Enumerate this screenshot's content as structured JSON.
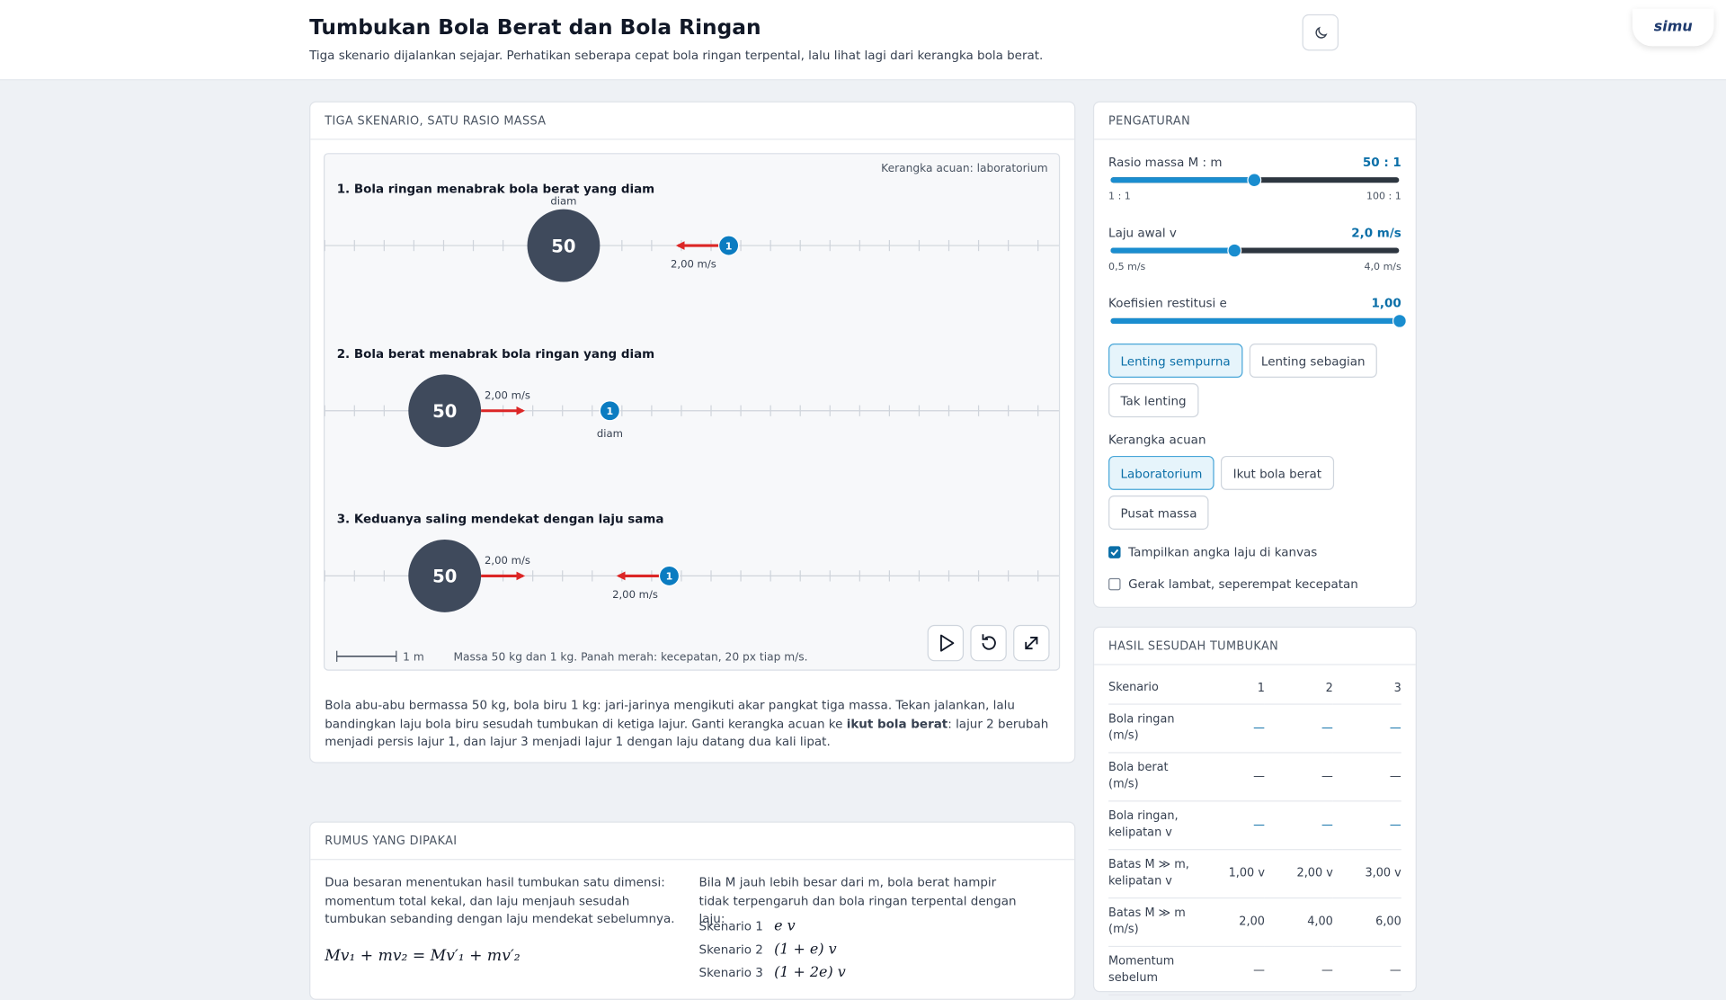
{
  "header": {
    "title": "Tumbukan Bola Berat dan Bola Ringan",
    "subtitle": "Tiga skenario dijalankan sejajar. Perhatikan seberapa cepat bola ringan terpental, lalu lihat lagi dari kerangka bola berat.",
    "logo": "simu"
  },
  "simulation": {
    "heading": "TIGA SKENARIO, SATU RASIO MASSA",
    "frame_label": "Kerangka acuan: laboratorium",
    "lanes": [
      {
        "title": "1. Bola ringan menabrak bola berat yang diam",
        "heavy": "50",
        "light": "1",
        "heavy_note": "diam",
        "light_note": "2,00 m/s"
      },
      {
        "title": "2. Bola berat menabrak bola ringan yang diam",
        "heavy": "50",
        "light": "1",
        "heavy_note": "2,00 m/s",
        "light_note": "diam"
      },
      {
        "title": "3. Keduanya saling mendekat dengan laju sama",
        "heavy": "50",
        "light": "1",
        "heavy_note": "2,00 m/s",
        "light_note": "2,00 m/s"
      }
    ],
    "scale_label": "1 m",
    "caption": "Massa 50 kg dan 1 kg. Panah merah: kecepatan, 20 px tiap m/s.",
    "description": {
      "before": "Bola abu-abu bermassa 50 kg, bola biru 1 kg: jari-jarinya mengikuti akar pangkat tiga massa. Tekan jalankan, lalu bandingkan laju bola biru sesudah tumbukan di ketiga lajur. Ganti kerangka acuan ke ",
      "bold": "ikut bola berat",
      "after": ": lajur 2 berubah menjadi persis lajur 1, dan lajur 3 menjadi lajur 1 dengan laju datang dua kali lipat."
    }
  },
  "settings": {
    "heading": "PENGATURAN",
    "sliders": [
      {
        "label": "Rasio massa M : m",
        "value_label": "50 : 1",
        "min_label": "1 : 1",
        "max_label": "100 : 1",
        "value": 50,
        "min": 1,
        "max": 100
      },
      {
        "label": "Laju awal v",
        "value_label": "2,0 m/s",
        "min_label": "0,5 m/s",
        "max_label": "4,0 m/s",
        "value": 2.0,
        "min": 0.5,
        "max": 4.0
      },
      {
        "label": "Koefisien restitusi e",
        "value_label": "1,00",
        "value": 1,
        "min": 0,
        "max": 1
      }
    ],
    "restitution_buttons": [
      "Lenting sempurna",
      "Lenting sebagian",
      "Tak lenting"
    ],
    "frame_heading": "Kerangka acuan",
    "frame_buttons": [
      "Laboratorium",
      "Ikut bola berat",
      "Pusat massa"
    ],
    "checkboxes": [
      {
        "label": "Tampilkan angka laju di kanvas",
        "checked": true
      },
      {
        "label": "Gerak lambat, seperempat kecepatan",
        "checked": false
      }
    ]
  },
  "results": {
    "heading": "HASIL SESUDAH TUMBUKAN",
    "header": [
      "Skenario",
      "1",
      "2",
      "3"
    ],
    "rows": [
      [
        "Bola ringan (m/s)",
        "—",
        "—",
        "—"
      ],
      [
        "Bola berat (m/s)",
        "—",
        "—",
        "—"
      ],
      [
        "Bola ringan, kelipatan v",
        "—",
        "—",
        "—"
      ],
      [
        "Batas M ≫ m, kelipatan v",
        "1,00 v",
        "2,00 v",
        "3,00 v"
      ],
      [
        "Batas M ≫ m (m/s)",
        "2,00",
        "4,00",
        "6,00"
      ],
      [
        "Momentum sebelum",
        "—",
        "—",
        "—"
      ]
    ]
  },
  "formulas": {
    "heading": "RUMUS YANG DIPAKAI",
    "left_text": "Dua besaran menentukan hasil tumbukan satu dimensi: momentum total kekal, dan laju menjauh sesudah tumbukan sebanding dengan laju mendekat sebelumnya.",
    "equation": "Mv₁ + mv₂ = Mv′₁ + mv′₂",
    "right_text": "Bila M jauh lebih besar dari m, bola berat hampir tidak terpengaruh dan bola ringan terpental dengan laju:",
    "limits": [
      {
        "label": "Skenario 1",
        "formula": "e v"
      },
      {
        "label": "Skenario 2",
        "formula": "(1 + e) v"
      },
      {
        "label": "Skenario 3",
        "formula": "(1 + 2e) v"
      }
    ]
  }
}
